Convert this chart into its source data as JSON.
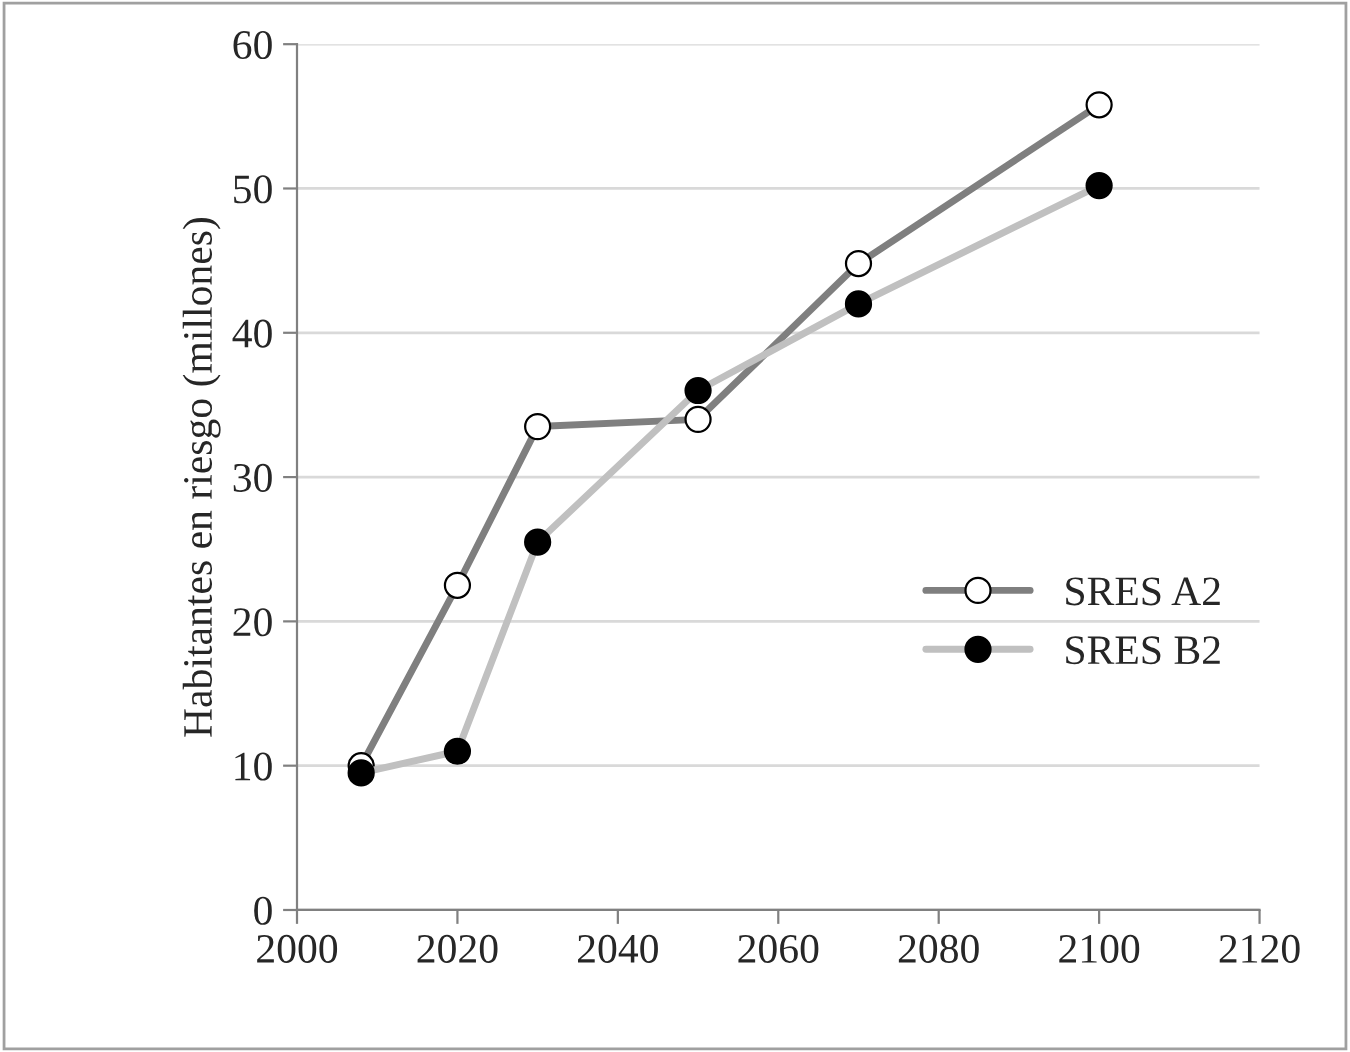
{
  "chart_data": {
    "type": "line",
    "ylabel": "Habitantes en riesgo (millones)",
    "x": [
      2008,
      2020,
      2030,
      2050,
      2070,
      2100
    ],
    "series": [
      {
        "name": "SRES A2",
        "color": "#7f7f7f",
        "values": [
          10,
          22.5,
          33.5,
          34,
          44.8,
          55.8
        ]
      },
      {
        "name": "SRES B2",
        "color": "#c0c0c0",
        "values": [
          9.5,
          11,
          25.5,
          36,
          42,
          50.2
        ]
      }
    ],
    "xlim": [
      2000,
      2120
    ],
    "xticks": [
      2000,
      2020,
      2040,
      2060,
      2080,
      2100,
      2120
    ],
    "ylim": [
      0,
      60
    ],
    "yticks": [
      0,
      10,
      20,
      30,
      40,
      50,
      60
    ],
    "grid": "y",
    "legend": "right",
    "marker": "circle",
    "line_style": "solid"
  }
}
